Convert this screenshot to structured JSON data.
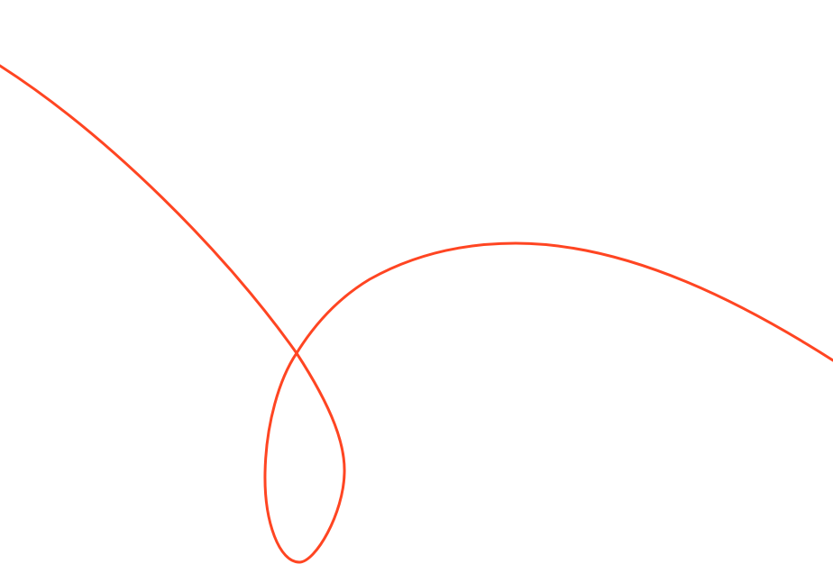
{
  "background": {
    "curve_color": "#FF4522"
  }
}
